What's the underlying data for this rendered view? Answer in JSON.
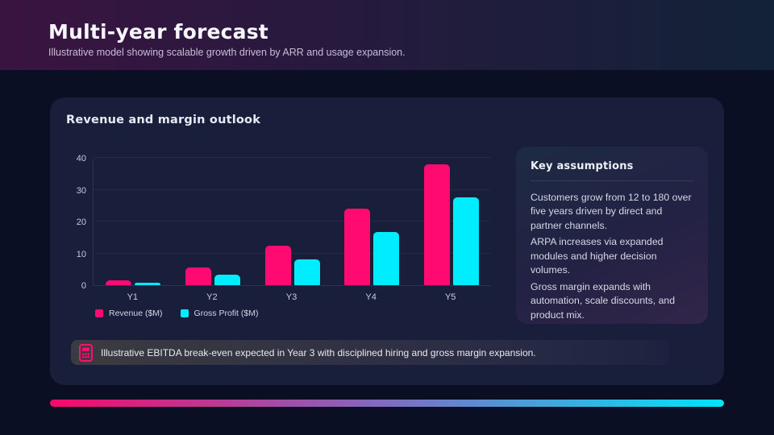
{
  "header": {
    "title": "Multi-year forecast",
    "subtitle": "Illustrative model showing scalable growth driven by ARR and usage expansion."
  },
  "chart_data": {
    "type": "bar",
    "title": "Revenue and margin outlook",
    "categories": [
      "Y1",
      "Y2",
      "Y3",
      "Y4",
      "Y5"
    ],
    "series": [
      {
        "name": "Revenue ($M)",
        "color": "#ff0a70",
        "values": [
          1.5,
          5.5,
          12.3,
          24,
          38
        ]
      },
      {
        "name": "Gross Profit ($M)",
        "color": "#00ecff",
        "values": [
          0.8,
          3.3,
          8,
          16.8,
          27.7
        ]
      }
    ],
    "xlabel": "",
    "ylabel": "",
    "ylim": [
      0,
      40
    ],
    "yticks": [
      0,
      10,
      20,
      30,
      40
    ],
    "grid": true,
    "legend_position": "bottom-left"
  },
  "assumptions": {
    "title": "Key assumptions",
    "items": [
      "Customers grow from 12 to 180 over five years driven by direct and partner channels.",
      "ARPA increases via expanded modules and higher decision volumes.",
      "Gross margin expands with automation, scale discounts, and product mix."
    ]
  },
  "note": {
    "icon": "calculator-icon",
    "text": "Illustrative EBITDA break-even expected in Year 3 with disciplined hiring and gross margin expansion."
  },
  "colors": {
    "accent_pink": "#ff0a70",
    "accent_cyan": "#00ecff",
    "accent_bar_gradient": [
      "#f5096b",
      "#7f6cc0",
      "#00e4fa"
    ]
  }
}
